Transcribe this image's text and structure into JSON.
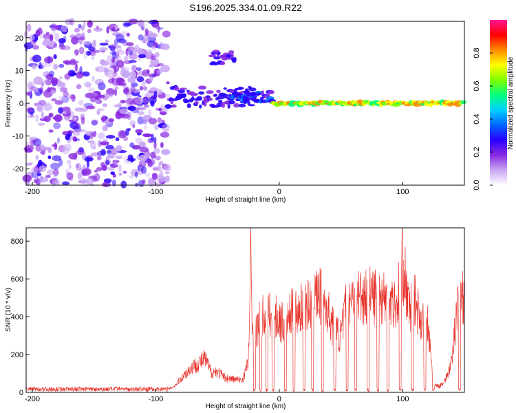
{
  "title": "S196.2025.334.01.09.R22",
  "colors": {
    "snr_line": "#e8352e",
    "colormap": [
      "#ffffff",
      "#c9a6f5",
      "#8a2be2",
      "#2a00ff",
      "#0066ff",
      "#00d0ff",
      "#00ff7f",
      "#7fff00",
      "#ffff00",
      "#ff8c00",
      "#ff0000",
      "#ff1493"
    ]
  },
  "chart_data": [
    {
      "type": "heatmap",
      "name": "spectrogram",
      "xlabel": "Height of straight line (km)",
      "ylabel": "Frequency (Hz)",
      "xlim": [
        -205,
        150
      ],
      "ylim": [
        -25,
        25
      ],
      "xticks": [
        -200,
        -100,
        0,
        100
      ],
      "xtick_labels": [
        "-200",
        "-100",
        "0",
        "100"
      ],
      "yticks": [
        -20,
        -10,
        0,
        10,
        20
      ],
      "ytick_labels": [
        "-20",
        "-10",
        "0",
        "10",
        "20"
      ],
      "noise_region_x": [
        -205,
        -90
      ],
      "signal_ridges": [
        {
          "x_start": -90,
          "x_end": -20,
          "freq": 2,
          "spread_hz": 6,
          "amp": 0.3
        },
        {
          "x_start": -55,
          "x_end": -35,
          "freq": 14,
          "spread_hz": 4,
          "amp": 0.3
        },
        {
          "x_start": -40,
          "x_end": -5,
          "freq": 2,
          "spread_hz": 3,
          "amp": 0.35
        },
        {
          "x_start": -5,
          "x_end": 150,
          "freq": 0,
          "spread_hz": 1,
          "amp": 0.85
        }
      ],
      "colorbar": {
        "label": "Normalized spectral amplitude",
        "range": [
          0,
          1
        ],
        "ticks": [
          0.0,
          0.2,
          0.4,
          0.6,
          0.8
        ],
        "tick_labels": [
          "0.0",
          "0.2",
          "0.4",
          "0.6",
          "0.8"
        ]
      }
    },
    {
      "type": "line",
      "name": "snr",
      "xlabel": "Height of straight line (km)",
      "ylabel": "SNR (10 * v/v)",
      "xlim": [
        -205,
        150
      ],
      "ylim": [
        0,
        870
      ],
      "xticks": [
        -200,
        -100,
        0,
        100
      ],
      "xtick_labels": [
        "-200",
        "-100",
        "0",
        "100"
      ],
      "yticks": [
        0,
        200,
        400,
        600,
        800
      ],
      "ytick_labels": [
        "0",
        "200",
        "400",
        "600",
        "800"
      ],
      "series": [
        {
          "name": "SNR",
          "envelope_x": [
            -205,
            -90,
            -85,
            -80,
            -70,
            -60,
            -55,
            -50,
            -45,
            -40,
            -30,
            -25,
            -23,
            -22,
            -20,
            -15,
            -10,
            -5,
            0,
            5,
            10,
            15,
            20,
            25,
            30,
            35,
            40,
            45,
            50,
            55,
            60,
            70,
            80,
            90,
            95,
            100,
            105,
            110,
            115,
            120,
            125,
            130,
            135,
            140,
            145,
            150
          ],
          "envelope_y": [
            20,
            20,
            40,
            90,
            170,
            220,
            130,
            140,
            100,
            90,
            80,
            200,
            870,
            450,
            380,
            480,
            520,
            500,
            480,
            450,
            520,
            540,
            560,
            580,
            640,
            620,
            520,
            400,
            370,
            620,
            650,
            640,
            640,
            620,
            560,
            870,
            540,
            600,
            480,
            470,
            50,
            40,
            90,
            200,
            680,
            640
          ],
          "dropout_x": [
            -20,
            -15,
            -10,
            -5,
            5,
            12,
            20,
            27,
            35,
            45,
            55,
            62,
            72,
            80,
            88,
            98,
            108,
            118,
            125,
            146
          ]
        }
      ]
    }
  ]
}
